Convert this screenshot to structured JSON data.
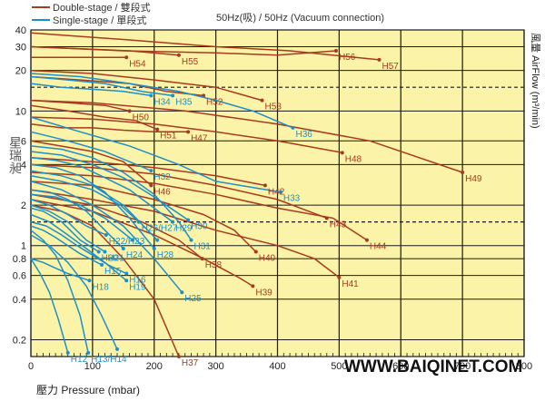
{
  "header": {
    "legend_double": "Double-stage / 雙段式",
    "legend_single": "Single-stage / 單段式",
    "connection_note": "50Hz(吸) / 50Hz (Vacuum connection)"
  },
  "colors": {
    "double_stage": "#a83a20",
    "single_stage": "#1e8fc8",
    "background": "#fbf3a8",
    "grid": "#1a1a1a"
  },
  "brand_mark": "星瑞昶",
  "watermark": "WWW.BAIQINET.COM",
  "chart_data": {
    "type": "line",
    "title": "",
    "xlabel": "壓力 Pressure (mbar)",
    "ylabel": "風量 AirFlow (m³/min)",
    "x_scale": "linear",
    "y_scale": "log",
    "xlim": [
      0,
      800
    ],
    "ylim": [
      0.15,
      40
    ],
    "x_ticks": [
      "0",
      "100",
      "200",
      "300",
      "400",
      "500",
      "600",
      "700",
      "800"
    ],
    "y_ticks": [
      "0.2",
      "0.4",
      "0.6",
      "0.8",
      "1",
      "2",
      "4",
      "6",
      "10",
      "20",
      "30",
      "40"
    ],
    "dashed_reference_lines": [
      1.5,
      15
    ],
    "series": [
      {
        "name": "H57",
        "stage": "double",
        "x": [
          0,
          150,
          300,
          420,
          565
        ],
        "y": [
          38,
          34,
          30,
          28,
          24
        ]
      },
      {
        "name": "H56",
        "stage": "double",
        "x": [
          0,
          150,
          300,
          400,
          495
        ],
        "y": [
          30,
          28,
          27,
          26,
          28
        ]
      },
      {
        "name": "H55",
        "stage": "double",
        "x": [
          0,
          80,
          160,
          240
        ],
        "y": [
          30,
          29,
          28,
          26
        ]
      },
      {
        "name": "H54",
        "stage": "double",
        "x": [
          0,
          60,
          120,
          155
        ],
        "y": [
          25,
          25,
          25,
          25
        ]
      },
      {
        "name": "H53",
        "stage": "double",
        "x": [
          0,
          100,
          200,
          300,
          375
        ],
        "y": [
          20,
          19,
          17,
          15,
          12
        ]
      },
      {
        "name": "H52",
        "stage": "double",
        "x": [
          0,
          80,
          160,
          220,
          280
        ],
        "y": [
          18,
          17,
          16,
          14,
          13
        ]
      },
      {
        "name": "H50",
        "stage": "double",
        "x": [
          0,
          60,
          120,
          160
        ],
        "y": [
          12,
          11.5,
          11,
          10
        ]
      },
      {
        "name": "H51",
        "stage": "double",
        "x": [
          0,
          60,
          120,
          170,
          205
        ],
        "y": [
          11,
          10,
          9,
          8.5,
          7.3
        ]
      },
      {
        "name": "H49",
        "stage": "double",
        "x": [
          0,
          100,
          250,
          400,
          550,
          700
        ],
        "y": [
          12,
          11.5,
          10,
          8,
          6,
          3.5
        ]
      },
      {
        "name": "H48",
        "stage": "double",
        "x": [
          0,
          100,
          200,
          300,
          400,
          505
        ],
        "y": [
          9,
          8.7,
          8,
          7,
          6,
          4.9
        ]
      },
      {
        "name": "H47",
        "stage": "double",
        "x": [
          0,
          50,
          100,
          150,
          200,
          255
        ],
        "y": [
          8,
          7.5,
          7.5,
          7.2,
          7,
          7
        ]
      },
      {
        "name": "H46",
        "stage": "double",
        "x": [
          0,
          100,
          150,
          195
        ],
        "y": [
          6,
          5,
          4.2,
          2.8
        ]
      },
      {
        "name": "H42",
        "stage": "double",
        "x": [
          0,
          100,
          200,
          300,
          380
        ],
        "y": [
          4.5,
          4.2,
          3.8,
          3.3,
          2.8
        ]
      },
      {
        "name": "H43",
        "stage": "double",
        "x": [
          0,
          100,
          200,
          300,
          400,
          480
        ],
        "y": [
          4,
          3.8,
          3.4,
          2.8,
          2.2,
          1.6
        ]
      },
      {
        "name": "H44",
        "stage": "double",
        "x": [
          0,
          100,
          200,
          300,
          400,
          490,
          545
        ],
        "y": [
          3.5,
          3.3,
          2.9,
          2.4,
          1.9,
          1.6,
          1.1
        ]
      },
      {
        "name": "H40",
        "stage": "double",
        "x": [
          0,
          100,
          200,
          280,
          330,
          365
        ],
        "y": [
          3,
          2.8,
          2.2,
          1.7,
          1.3,
          0.9
        ]
      },
      {
        "name": "H41",
        "stage": "double",
        "x": [
          0,
          100,
          200,
          300,
          400,
          460,
          500
        ],
        "y": [
          2.6,
          2.2,
          1.8,
          1.3,
          1,
          0.8,
          0.58
        ]
      },
      {
        "name": "H38",
        "stage": "double",
        "x": [
          0,
          100,
          180,
          240,
          278
        ],
        "y": [
          2.4,
          2,
          1.5,
          1.1,
          0.8
        ]
      },
      {
        "name": "H39",
        "stage": "double",
        "x": [
          0,
          100,
          200,
          280,
          340,
          360
        ],
        "y": [
          2.2,
          1.8,
          1.2,
          0.8,
          0.57,
          0.5
        ]
      },
      {
        "name": "H37",
        "stage": "double",
        "x": [
          0,
          50,
          100,
          150,
          200,
          240
        ],
        "y": [
          2,
          1.8,
          1.4,
          0.8,
          0.4,
          0.15
        ]
      },
      {
        "name": "H36",
        "stage": "single",
        "x": [
          0,
          80,
          160,
          240,
          300,
          360,
          425
        ],
        "y": [
          19,
          18,
          16,
          14,
          12,
          10,
          7.5
        ]
      },
      {
        "name": "H35",
        "stage": "single",
        "x": [
          0,
          60,
          120,
          180,
          230
        ],
        "y": [
          18,
          17,
          16,
          14,
          13
        ]
      },
      {
        "name": "H34",
        "stage": "single",
        "x": [
          0,
          50,
          100,
          150,
          195
        ],
        "y": [
          16,
          15,
          14.5,
          14,
          13
        ]
      },
      {
        "name": "H33",
        "stage": "single",
        "x": [
          0,
          80,
          160,
          240,
          300,
          405
        ],
        "y": [
          9,
          7,
          5.5,
          4,
          3,
          2.5
        ]
      },
      {
        "name": "H32",
        "stage": "single",
        "x": [
          0,
          60,
          120,
          160,
          195
        ],
        "y": [
          7,
          6,
          5,
          4.2,
          3.6
        ]
      },
      {
        "name": "H31",
        "stage": "single",
        "x": [
          0,
          50,
          100,
          150,
          200,
          240,
          260
        ],
        "y": [
          5.5,
          5.2,
          4.5,
          3.5,
          2.4,
          1.5,
          1.1
        ]
      },
      {
        "name": "H30",
        "stage": "single",
        "x": [
          0,
          50,
          100,
          150,
          200,
          255
        ],
        "y": [
          5,
          4.7,
          4,
          3.2,
          2.3,
          1.55
        ]
      },
      {
        "name": "H29",
        "stage": "single",
        "x": [
          0,
          40,
          80,
          120,
          160,
          230
        ],
        "y": [
          4.5,
          4.3,
          3.9,
          3.2,
          2.6,
          1.5
        ]
      },
      {
        "name": "H28",
        "stage": "single",
        "x": [
          0,
          40,
          80,
          120,
          160,
          200
        ],
        "y": [
          4,
          3.8,
          3.3,
          2.5,
          1.6,
          0.95
        ]
      },
      {
        "name": "H27",
        "stage": "single",
        "x": [
          0,
          50,
          100,
          150,
          205
        ],
        "y": [
          3.6,
          3.3,
          2.8,
          2,
          1.1
        ]
      },
      {
        "name": "H26",
        "stage": "single",
        "x": [
          0,
          50,
          100,
          145,
          175
        ],
        "y": [
          3.3,
          3,
          2.6,
          2,
          1.5
        ]
      },
      {
        "name": "H25",
        "stage": "single",
        "x": [
          0,
          50,
          100,
          150,
          200,
          245
        ],
        "y": [
          3,
          2.6,
          2,
          1.4,
          0.8,
          0.45
        ]
      },
      {
        "name": "H24",
        "stage": "single",
        "x": [
          0,
          30,
          60,
          90,
          120,
          150
        ],
        "y": [
          2.6,
          2.5,
          2.2,
          1.8,
          1.3,
          0.95
        ]
      },
      {
        "name": "H23",
        "stage": "single",
        "x": [
          0,
          40,
          80,
          120,
          165
        ],
        "y": [
          2.4,
          2.3,
          2,
          1.6,
          1.1
        ]
      },
      {
        "name": "H22",
        "stage": "single",
        "x": [
          0,
          30,
          60,
          90,
          122
        ],
        "y": [
          2.2,
          2,
          1.7,
          1.4,
          1.2
        ]
      },
      {
        "name": "H21",
        "stage": "single",
        "x": [
          0,
          30,
          60,
          90,
          120
        ],
        "y": [
          2,
          1.8,
          1.5,
          1.1,
          0.9
        ]
      },
      {
        "name": "H20",
        "stage": "single",
        "x": [
          0,
          20,
          50,
          80,
          110
        ],
        "y": [
          1.9,
          1.8,
          1.5,
          1.1,
          0.9
        ]
      },
      {
        "name": "H19",
        "stage": "single",
        "x": [
          0,
          30,
          60,
          90,
          120,
          155
        ],
        "y": [
          1.7,
          1.5,
          1.2,
          0.95,
          0.75,
          0.55
        ]
      },
      {
        "name": "H18",
        "stage": "single",
        "x": [
          0,
          20,
          40,
          60,
          80,
          95
        ],
        "y": [
          0.8,
          0.75,
          0.68,
          0.62,
          0.58,
          0.55
        ]
      },
      {
        "name": "H16",
        "stage": "single",
        "x": [
          0,
          25,
          50,
          75,
          100,
          125,
          155
        ],
        "y": [
          1.5,
          1.4,
          1.2,
          1,
          0.85,
          0.72,
          0.62
        ]
      },
      {
        "name": "H15",
        "stage": "single",
        "x": [
          0,
          20,
          40,
          60,
          80,
          100,
          115
        ],
        "y": [
          1.4,
          1.3,
          1.15,
          1,
          0.87,
          0.78,
          0.72
        ]
      },
      {
        "name": "H14",
        "stage": "single",
        "x": [
          0,
          30,
          60,
          90,
          115,
          140
        ],
        "y": [
          1.2,
          1,
          0.75,
          0.5,
          0.3,
          0.17
        ]
      },
      {
        "name": "H13",
        "stage": "single",
        "x": [
          0,
          20,
          40,
          60,
          80,
          93
        ],
        "y": [
          1.3,
          1.1,
          0.85,
          0.55,
          0.3,
          0.16
        ]
      },
      {
        "name": "H12",
        "stage": "single",
        "x": [
          0,
          15,
          30,
          45,
          60
        ],
        "y": [
          0.8,
          0.62,
          0.45,
          0.28,
          0.16
        ]
      }
    ],
    "curve_labels": [
      "H12",
      "H13/H14",
      "H15",
      "H16",
      "H18",
      "H19",
      "H20",
      "H21",
      "H22/H23",
      "H24",
      "H25",
      "H26/H27",
      "H28",
      "H29",
      "H30",
      "H31",
      "H32",
      "H33",
      "H34",
      "H35",
      "H36",
      "H37",
      "H38",
      "H39",
      "H40",
      "H41",
      "H42",
      "H43",
      "H44",
      "H46",
      "H47",
      "H48",
      "H49",
      "H50",
      "H51",
      "H52",
      "H53",
      "H54",
      "H55",
      "H56",
      "H57"
    ]
  }
}
